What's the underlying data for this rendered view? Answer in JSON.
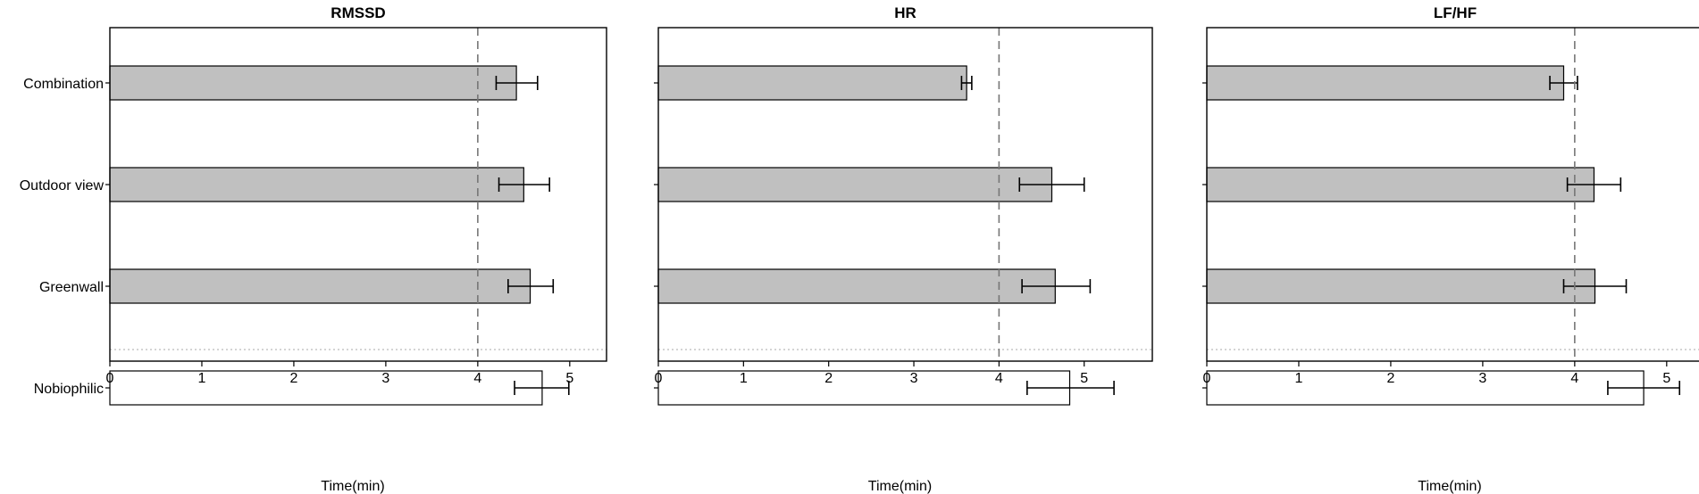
{
  "figure": {
    "y_categories": [
      "Combination",
      "Outdoor view",
      "Greenwall",
      "Nobiophilic"
    ]
  },
  "chart_data": [
    {
      "type": "bar",
      "orientation": "horizontal",
      "title": "RMSSD",
      "xlabel": "Time(min)",
      "ylabel": "",
      "categories": [
        "Combination",
        "Outdoor view",
        "Greenwall",
        "Nobiophilic"
      ],
      "values": [
        4.42,
        4.5,
        4.57,
        4.7
      ],
      "error_low": [
        4.2,
        4.23,
        4.33,
        4.4
      ],
      "error_high": [
        4.65,
        4.78,
        4.82,
        4.99
      ],
      "bar_colors": [
        "#c0c0c0",
        "#c0c0c0",
        "#c0c0c0",
        "#ffffff"
      ],
      "xlim": [
        0,
        5.4
      ],
      "xticks": [
        0,
        1,
        2,
        3,
        4,
        5
      ],
      "reference_line_x": 4,
      "separator_between": [
        "Greenwall",
        "Nobiophilic"
      ],
      "grid": false
    },
    {
      "type": "bar",
      "orientation": "horizontal",
      "title": "HR",
      "xlabel": "Time(min)",
      "ylabel": "",
      "categories": [
        "Combination",
        "Outdoor view",
        "Greenwall",
        "Nobiophilic"
      ],
      "values": [
        3.62,
        4.62,
        4.66,
        4.83
      ],
      "error_low": [
        3.56,
        4.24,
        4.27,
        4.33
      ],
      "error_high": [
        3.68,
        5.0,
        5.07,
        5.35
      ],
      "bar_colors": [
        "#c0c0c0",
        "#c0c0c0",
        "#c0c0c0",
        "#ffffff"
      ],
      "xlim": [
        0,
        5.8
      ],
      "xticks": [
        0,
        1,
        2,
        3,
        4,
        5
      ],
      "reference_line_x": 4,
      "separator_between": [
        "Greenwall",
        "Nobiophilic"
      ],
      "grid": false
    },
    {
      "type": "bar",
      "orientation": "horizontal",
      "title": "LF/HF",
      "xlabel": "Time(min)",
      "ylabel": "",
      "categories": [
        "Combination",
        "Outdoor view",
        "Greenwall",
        "Nobiophilic"
      ],
      "values": [
        3.88,
        4.21,
        4.22,
        4.75
      ],
      "error_low": [
        3.73,
        3.92,
        3.88,
        4.36
      ],
      "error_high": [
        4.03,
        4.5,
        4.56,
        5.14
      ],
      "bar_colors": [
        "#c0c0c0",
        "#c0c0c0",
        "#c0c0c0",
        "#ffffff"
      ],
      "xlim": [
        0,
        5.4
      ],
      "xticks": [
        0,
        1,
        2,
        3,
        4,
        5
      ],
      "reference_line_x": 4,
      "separator_between": [
        "Greenwall",
        "Nobiophilic"
      ],
      "grid": false
    }
  ]
}
